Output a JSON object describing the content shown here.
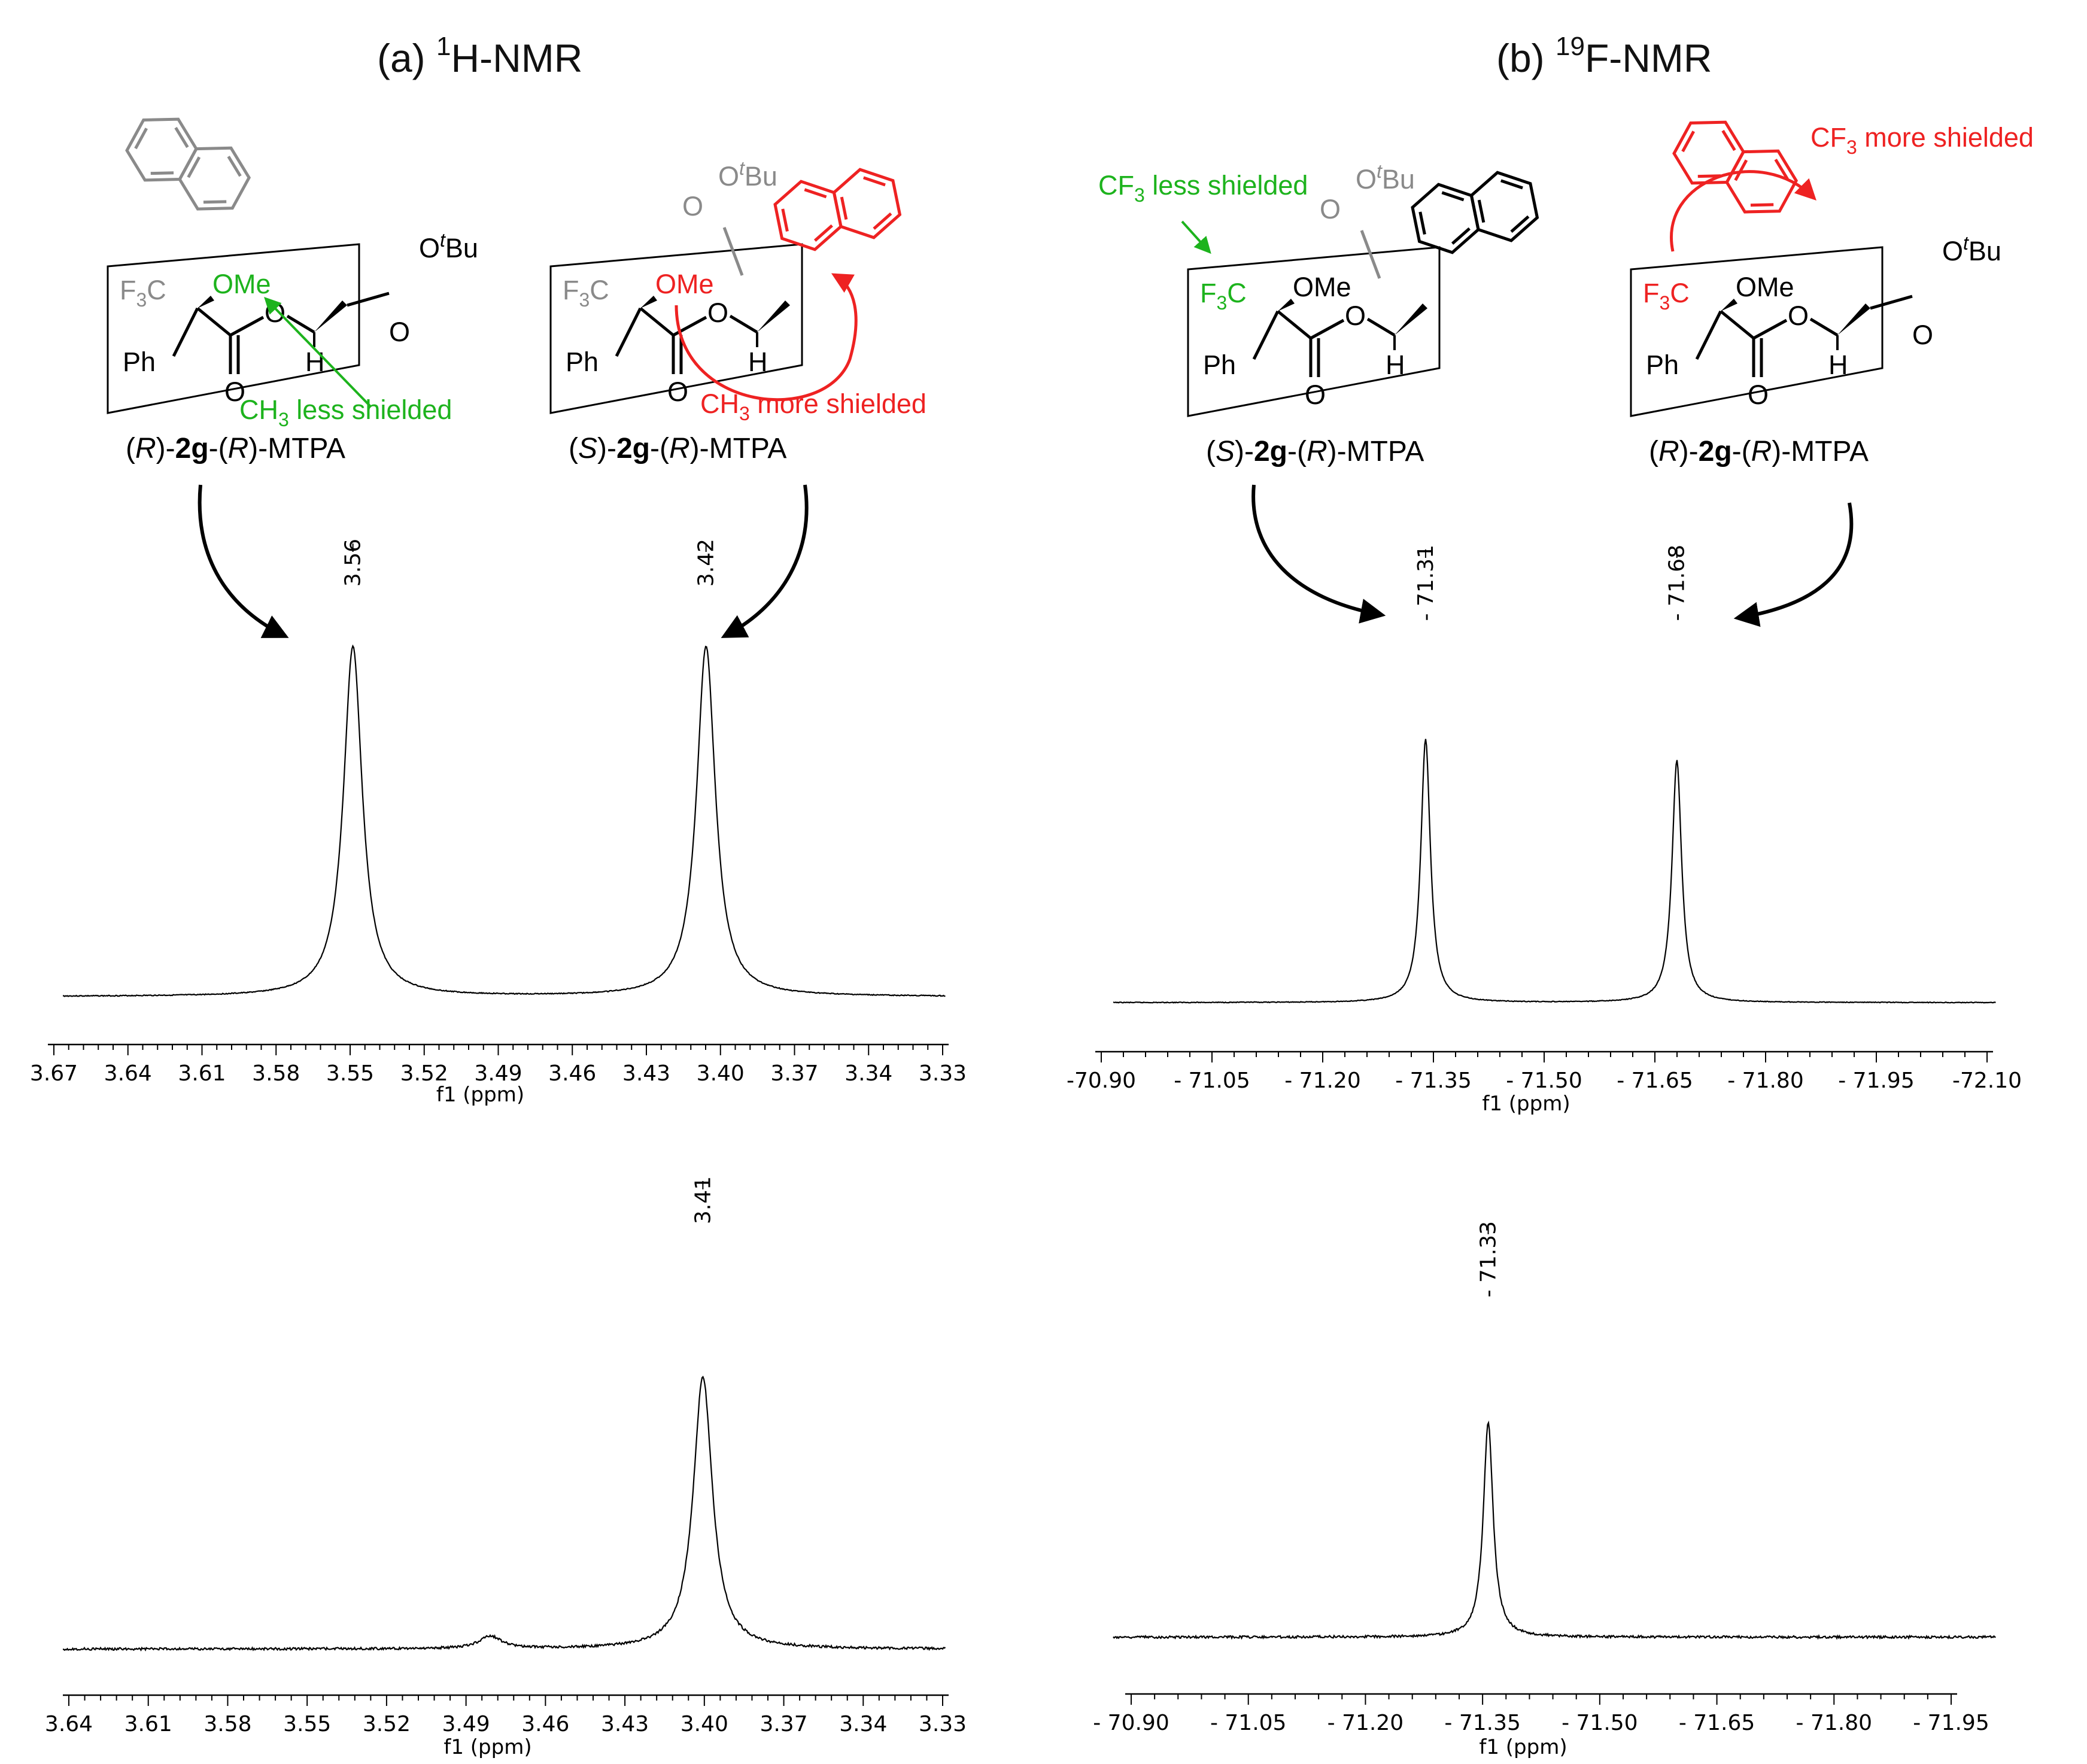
{
  "panels": {
    "a": {
      "title_prefix": "(a) ",
      "title_sup": "1",
      "title_main": "H-NMR"
    },
    "b": {
      "title_prefix": "(b) ",
      "title_sup": "19",
      "title_main": "F-NMR"
    }
  },
  "structures": [
    {
      "id": "r2g",
      "label_parts": [
        "(",
        "R",
        ")-",
        "2g",
        "-(",
        "R",
        ")-MTPA"
      ],
      "note": {
        "pre": "CH",
        "sub": "3",
        "post": " less shielded",
        "color": "#1db31d"
      }
    },
    {
      "id": "s2g",
      "label_parts": [
        "(",
        "S",
        ")-",
        "2g",
        "-(",
        "R",
        ")-MTPA"
      ],
      "note": {
        "pre": "CH",
        "sub": "3",
        "post": " more shielded",
        "color": "#ee2222"
      }
    },
    {
      "id": "s2g-f",
      "label_parts": [
        "(",
        "S",
        ")-",
        "2g",
        "-(",
        "R",
        ")-MTPA"
      ],
      "note": {
        "pre": "CF",
        "sub": "3",
        "post": " less shielded",
        "color": "#1db31d"
      }
    },
    {
      "id": "r2g-f",
      "label_parts": [
        "(",
        "R",
        ")-",
        "2g",
        "-(",
        "R",
        ")-MTPA"
      ],
      "note": {
        "pre": "CF",
        "sub": "3",
        "post": " more shielded",
        "color": "#ee2222"
      }
    }
  ],
  "atoms": {
    "f3c_pre": "F",
    "f3c_sub": "3",
    "f3c_post": "C",
    "ome": "OMe",
    "o": "O",
    "h": "H",
    "ph": "Ph",
    "otbu_pre": "O",
    "otbu_sup": "t",
    "otbu_post": "Bu"
  },
  "colors": {
    "green": "#1db31d",
    "red": "#ee2222",
    "grey": "#8a8a8a",
    "ink": "#000000"
  },
  "chart_data": [
    {
      "id": "a-top",
      "type": "line",
      "xlabel": "f1 (ppm)",
      "x_reversed": true,
      "xlim": [
        3.675,
        3.325
      ],
      "ticks": [
        "3.67",
        "3.64",
        "3.61",
        "3.58",
        "3.55",
        "3.52",
        "3.49",
        "3.46",
        "3.43",
        "3.40",
        "3.37",
        "3.34",
        "3.33"
      ],
      "peaks": [
        {
          "ppm": 3.56,
          "label": "3.56",
          "height": 1.0,
          "width": 0.0045
        },
        {
          "ppm": 3.42,
          "label": "3.42",
          "height": 1.0,
          "width": 0.0045
        }
      ]
    },
    {
      "id": "b-top",
      "type": "line",
      "xlabel": "f1 (ppm)",
      "x_reversed": true,
      "xlim": [
        -70.85,
        -72.15
      ],
      "ticks": [
        "-70.90",
        "- 71.05",
        "- 71.20",
        "- 71.35",
        "- 71.50",
        "- 71.65",
        "- 71.80",
        "- 71.95",
        "-72.10"
      ],
      "peaks": [
        {
          "ppm": -71.31,
          "label": "- 71.31",
          "height": 1.0,
          "width": 0.0085
        },
        {
          "ppm": -71.68,
          "label": "- 71.68",
          "height": 0.92,
          "width": 0.0085
        }
      ]
    },
    {
      "id": "a-bottom",
      "type": "line",
      "xlabel": "f1 (ppm)",
      "x_reversed": true,
      "xlim": [
        3.645,
        3.325
      ],
      "ticks": [
        "3.64",
        "3.61",
        "3.58",
        "3.55",
        "3.52",
        "3.49",
        "3.46",
        "3.43",
        "3.40",
        "3.37",
        "3.34",
        "3.33"
      ],
      "peaks": [
        {
          "ppm": 3.413,
          "label": "3.41",
          "height": 1.0,
          "width": 0.0042
        },
        {
          "ppm": 3.49,
          "label": "",
          "height": 0.045,
          "width": 0.005
        }
      ]
    },
    {
      "id": "b-bottom",
      "type": "line",
      "xlabel": "f1 (ppm)",
      "x_reversed": true,
      "xlim": [
        -70.85,
        -71.98
      ],
      "ticks": [
        "- 70.90",
        "- 71.05",
        "- 71.20",
        "- 71.35",
        "- 71.50",
        "- 71.65",
        "- 71.80",
        "- 71.95"
      ],
      "peaks": [
        {
          "ppm": -71.33,
          "label": "- 71.33",
          "height": 1.0,
          "width": 0.0075
        }
      ]
    }
  ]
}
